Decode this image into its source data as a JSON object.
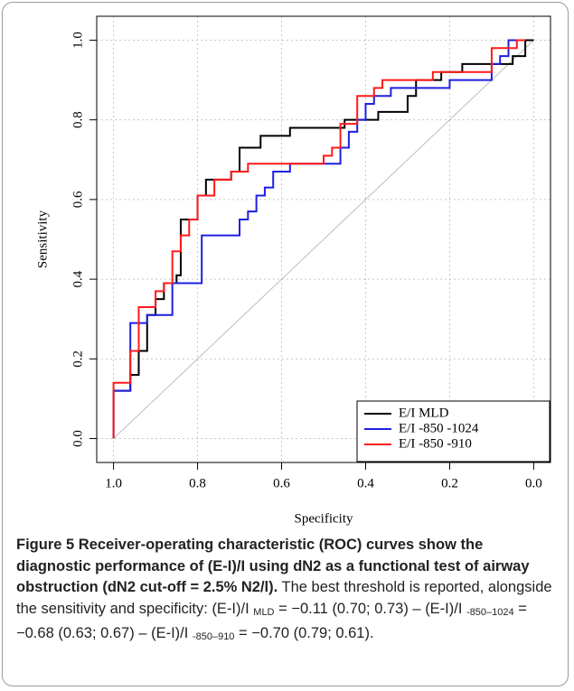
{
  "chart_data": {
    "type": "line",
    "xlabel": "Specificity",
    "ylabel": "Sensitivity",
    "xlim": [
      1.04,
      -0.04
    ],
    "ylim": [
      -0.06,
      1.06
    ],
    "xticks": [
      {
        "value": 1,
        "label": "1.0"
      },
      0.8,
      0.6,
      0.4,
      0.2,
      {
        "value": 0,
        "label": "0.0"
      }
    ],
    "yticks": [
      {
        "value": 0,
        "label": "0.0"
      },
      0.2,
      0.4,
      0.6,
      0.8,
      {
        "value": 1,
        "label": "1.0"
      }
    ],
    "grid": true,
    "legend": "lower right",
    "series": [
      {
        "name": "E/I MLD",
        "color": "#000000",
        "x": [
          1,
          1,
          0.96,
          0.96,
          0.94,
          0.94,
          0.92,
          0.92,
          0.9,
          0.9,
          0.88,
          0.88,
          0.85,
          0.85,
          0.84,
          0.84,
          0.8,
          0.8,
          0.78,
          0.78,
          0.72,
          0.72,
          0.7,
          0.7,
          0.65,
          0.65,
          0.58,
          0.58,
          0.45,
          0.45,
          0.37,
          0.37,
          0.3,
          0.3,
          0.28,
          0.28,
          0.22,
          0.22,
          0.17,
          0.17,
          0.05,
          0.05,
          0.02,
          0.02,
          0
        ],
        "values": [
          0,
          0.12,
          0.12,
          0.16,
          0.16,
          0.22,
          0.22,
          0.31,
          0.31,
          0.35,
          0.35,
          0.39,
          0.39,
          0.41,
          0.41,
          0.55,
          0.55,
          0.61,
          0.61,
          0.65,
          0.65,
          0.67,
          0.67,
          0.73,
          0.73,
          0.76,
          0.76,
          0.78,
          0.78,
          0.8,
          0.8,
          0.82,
          0.82,
          0.86,
          0.86,
          0.9,
          0.9,
          0.92,
          0.92,
          0.94,
          0.94,
          0.96,
          0.96,
          1,
          1
        ]
      },
      {
        "name": "E/I -850 -1024",
        "color": "#1f1fe0",
        "x": [
          1,
          1,
          0.96,
          0.96,
          0.92,
          0.92,
          0.86,
          0.86,
          0.79,
          0.79,
          0.7,
          0.7,
          0.68,
          0.68,
          0.66,
          0.66,
          0.64,
          0.64,
          0.62,
          0.62,
          0.58,
          0.58,
          0.46,
          0.46,
          0.44,
          0.44,
          0.42,
          0.42,
          0.4,
          0.4,
          0.38,
          0.38,
          0.34,
          0.34,
          0.2,
          0.2,
          0.1,
          0.1,
          0.08,
          0.08,
          0.06,
          0.06,
          0.02
        ],
        "values": [
          0,
          0.12,
          0.12,
          0.29,
          0.29,
          0.31,
          0.31,
          0.39,
          0.39,
          0.51,
          0.51,
          0.55,
          0.55,
          0.57,
          0.57,
          0.61,
          0.61,
          0.63,
          0.63,
          0.67,
          0.67,
          0.69,
          0.69,
          0.73,
          0.73,
          0.77,
          0.77,
          0.8,
          0.8,
          0.84,
          0.84,
          0.86,
          0.86,
          0.88,
          0.88,
          0.9,
          0.9,
          0.94,
          0.94,
          0.96,
          0.96,
          1,
          1
        ]
      },
      {
        "name": "E/I -850 -910",
        "color": "#ff1a1a",
        "x": [
          1,
          1,
          0.96,
          0.96,
          0.94,
          0.94,
          0.9,
          0.9,
          0.88,
          0.88,
          0.86,
          0.86,
          0.84,
          0.84,
          0.82,
          0.82,
          0.8,
          0.8,
          0.76,
          0.76,
          0.72,
          0.72,
          0.68,
          0.68,
          0.5,
          0.5,
          0.48,
          0.48,
          0.46,
          0.46,
          0.42,
          0.42,
          0.38,
          0.38,
          0.36,
          0.36,
          0.24,
          0.24,
          0.1,
          0.1,
          0.04,
          0.04,
          0.02
        ],
        "values": [
          0,
          0.14,
          0.14,
          0.22,
          0.22,
          0.33,
          0.33,
          0.37,
          0.37,
          0.39,
          0.39,
          0.47,
          0.47,
          0.51,
          0.51,
          0.55,
          0.55,
          0.61,
          0.61,
          0.65,
          0.65,
          0.67,
          0.67,
          0.69,
          0.69,
          0.71,
          0.71,
          0.73,
          0.73,
          0.79,
          0.79,
          0.86,
          0.86,
          0.88,
          0.88,
          0.9,
          0.9,
          0.92,
          0.92,
          0.98,
          0.98,
          1,
          1
        ]
      }
    ]
  },
  "caption": {
    "label": "Figure 5",
    "title": "Receiver-operating characteristic (ROC) curves show the diagnostic performance of (E-I)/I using dN2 as a functional test of airway obstruction (dN2 cut-off = 2.5% N2/l).",
    "text": "The best threshold is reported, alongside the sensitivity and specificity:",
    "results": [
      {
        "term": "(E-I)/I",
        "sub": "MLD",
        "value": "= −0.11 (0.70; 0.73)"
      },
      {
        "term": "(E-I)/I",
        "sub": "-850–1024",
        "value": "= −0.68 (0.63; 0.67)"
      },
      {
        "term": "(E-I)/I",
        "sub": "-850–910",
        "value": "= −0.70 (0.79; 0.61)."
      }
    ]
  }
}
